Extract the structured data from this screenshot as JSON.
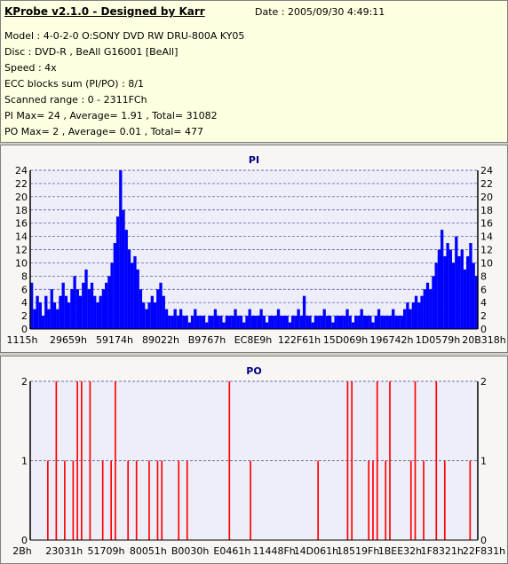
{
  "header": {
    "app_title": "KProbe v2.1.0 - Designed by Karr",
    "date": "Date : 2005/09/30 4:49:11",
    "lines": [
      "Model : 4-0-2-0 O:SONY    DVD RW DRU-800A  KY05",
      "Disc : DVD-R , BeAll G16001 [BeAll]",
      "Speed : 4x",
      "ECC blocks sum (PI/PO) : 8/1",
      "Scanned range : 0 - 2311FCh",
      "PI Max= 24 , Average= 1.91 , Total= 31082",
      "PO Max= 2 , Average= 0.01 , Total= 477"
    ]
  },
  "colors": {
    "pi_bar": "#0000ff",
    "po_bar": "#ff0000",
    "plot_bg": "#eeeef8",
    "grid": "#4040a0"
  },
  "chart_data": [
    {
      "type": "bar",
      "title": "PI",
      "ylim": [
        0,
        24
      ],
      "yticks": [
        0,
        2,
        4,
        6,
        8,
        10,
        12,
        14,
        16,
        18,
        20,
        22,
        24
      ],
      "x_ticks": [
        "1115h",
        "29659h",
        "59174h",
        "89022h",
        "B9767h",
        "EC8E9h",
        "122F61h",
        "15D069h",
        "196742h",
        "1D0579h",
        "20B318h"
      ],
      "grid": true,
      "series": [
        {
          "values": [
            7,
            3,
            5,
            4,
            2,
            5,
            3,
            6,
            4,
            3,
            5,
            7,
            5,
            4,
            6,
            8,
            6,
            5,
            7,
            9,
            6,
            7,
            5,
            4,
            5,
            6,
            7,
            8,
            10,
            13,
            17,
            24,
            18,
            15,
            12,
            10,
            11,
            9,
            6,
            4,
            3,
            4,
            5,
            4,
            6,
            7,
            5,
            3,
            2,
            2,
            3,
            2,
            3,
            2,
            2,
            1,
            2,
            3,
            2,
            2,
            2,
            1,
            2,
            2,
            3,
            2,
            2,
            1,
            2,
            2,
            2,
            3,
            2,
            2,
            1,
            2,
            3,
            2,
            2,
            2,
            3,
            2,
            1,
            2,
            2,
            2,
            3,
            2,
            2,
            2,
            1,
            2,
            2,
            3,
            2,
            5,
            2,
            2,
            1,
            2,
            2,
            2,
            3,
            2,
            2,
            1,
            2,
            2,
            2,
            2,
            3,
            2,
            1,
            2,
            2,
            3,
            2,
            2,
            2,
            1,
            2,
            3,
            2,
            2,
            2,
            2,
            3,
            2,
            2,
            2,
            3,
            4,
            3,
            4,
            5,
            4,
            5,
            6,
            7,
            6,
            8,
            10,
            12,
            15,
            11,
            13,
            12,
            10,
            14,
            11,
            12,
            9,
            11,
            13,
            10,
            8
          ]
        }
      ]
    },
    {
      "type": "bar",
      "title": "PO",
      "ylim": [
        0,
        2
      ],
      "yticks": [
        0,
        1,
        2
      ],
      "x_ticks": [
        "2Bh",
        "23031h",
        "51709h",
        "80051h",
        "B0030h",
        "E0461h",
        "11448Fh",
        "14D061h",
        "18519Fh",
        "1BEE32h",
        "1F8321h",
        "22F831h"
      ],
      "grid": true,
      "series": [
        {
          "values": [
            0,
            0,
            0,
            0,
            1,
            0,
            2,
            0,
            1,
            0,
            1,
            2,
            2,
            0,
            2,
            0,
            0,
            1,
            0,
            1,
            2,
            0,
            0,
            1,
            0,
            1,
            0,
            0,
            1,
            0,
            1,
            1,
            0,
            0,
            0,
            1,
            0,
            1,
            0,
            0,
            0,
            0,
            0,
            0,
            0,
            0,
            0,
            2,
            0,
            0,
            0,
            0,
            1,
            0,
            0,
            0,
            0,
            0,
            0,
            0,
            0,
            0,
            0,
            0,
            0,
            0,
            0,
            0,
            1,
            0,
            0,
            0,
            0,
            0,
            0,
            2,
            2,
            0,
            0,
            0,
            1,
            1,
            2,
            0,
            1,
            2,
            0,
            0,
            0,
            0,
            1,
            2,
            0,
            1,
            0,
            0,
            2,
            0,
            1,
            0,
            0,
            0,
            0,
            0,
            1,
            0
          ]
        }
      ]
    }
  ]
}
